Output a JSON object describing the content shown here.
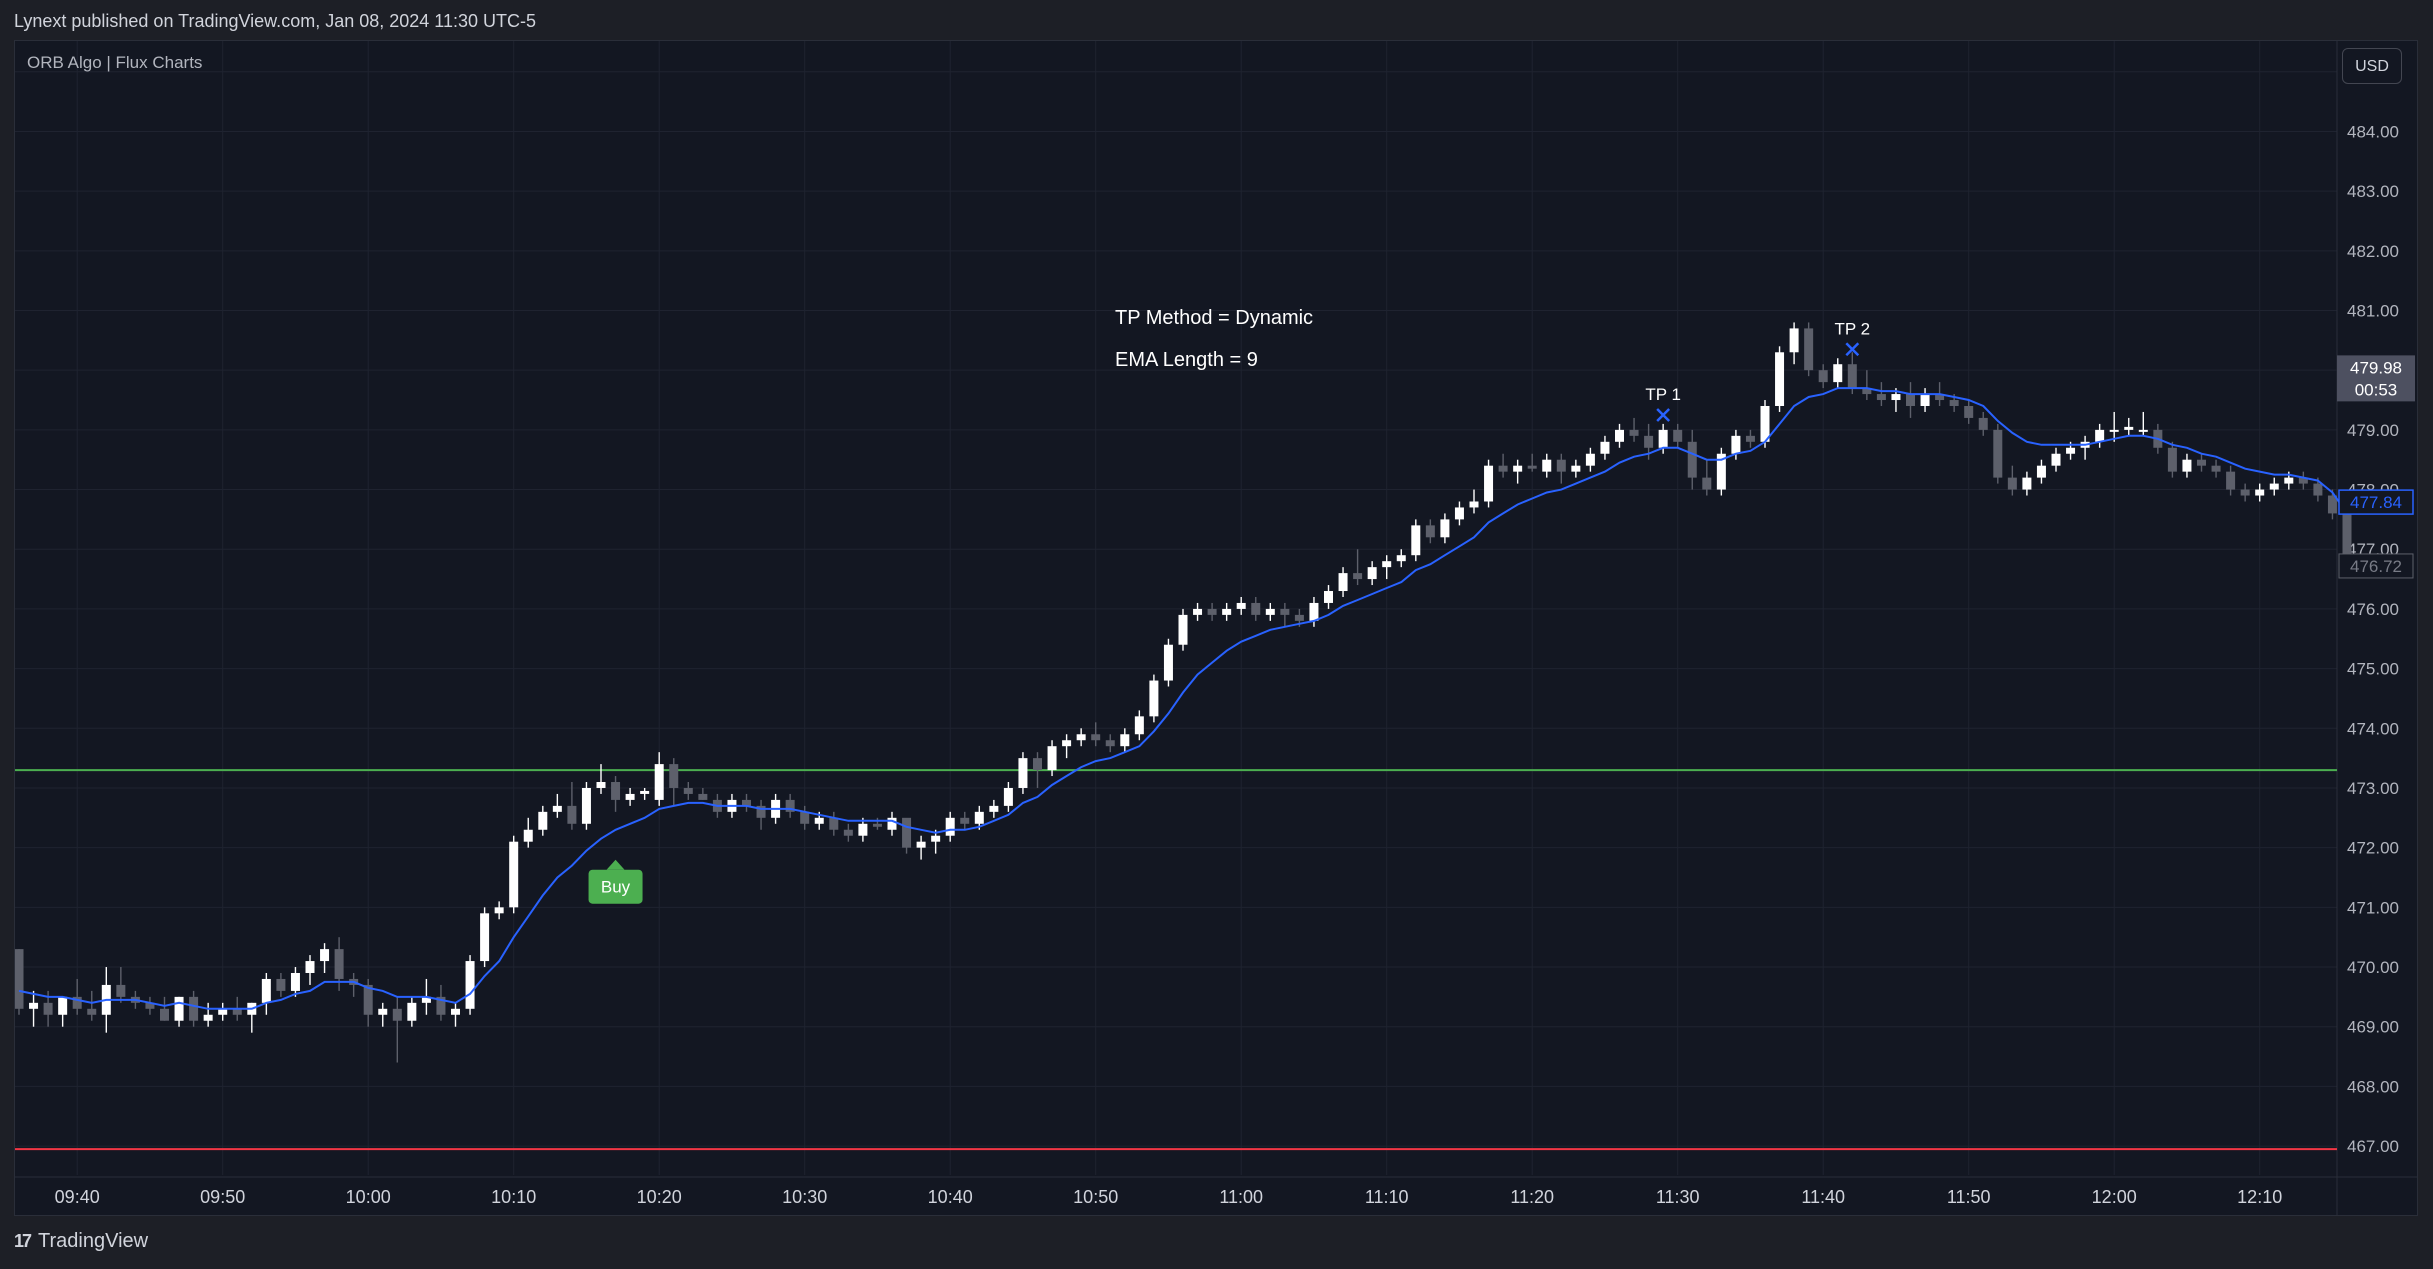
{
  "header": {
    "published_text": "Lynext published on TradingView.com, Jan 08, 2024 11:30 UTC-5"
  },
  "indicator": {
    "name": "ORB Algo | Flux Charts"
  },
  "currency": "USD",
  "footer": {
    "logo_mark": "17",
    "logo_text": "TradingView"
  },
  "colors": {
    "background": "#131722",
    "grid": "#1f2330",
    "bull_candle": "#ffffff",
    "bear_candle": "#5d606b",
    "ema": "#2962ff",
    "orb_high_line": "#4caf50",
    "orb_low_line": "#f23645",
    "buy_label": "#4caf50",
    "tp_marker": "#2962ff"
  },
  "chart_data": {
    "type": "candlestick",
    "title": "",
    "ylim": [
      466.75,
      485.75
    ],
    "y_ticks": [
      467,
      468,
      469,
      470,
      471,
      472,
      473,
      474,
      475,
      476,
      477,
      478,
      479,
      480,
      481,
      482,
      483,
      484,
      485
    ],
    "y_tick_labels": [
      "467.00",
      "468.00",
      "469.00",
      "470.00",
      "471.00",
      "472.00",
      "473.00",
      "474.00",
      "475.00",
      "476.00",
      "477.00",
      "478.00",
      "479.00",
      "480.00",
      "481.00",
      "482.00",
      "483.00",
      "484.00",
      "485.00"
    ],
    "x_tick_labels": [
      "09:40",
      "09:50",
      "10:00",
      "10:10",
      "10:20",
      "10:30",
      "10:40",
      "10:50",
      "11:00",
      "11:10",
      "11:20",
      "11:30",
      "11:40",
      "11:50",
      "12:00",
      "12:10"
    ],
    "x_tick_bar_index": [
      4,
      14,
      24,
      34,
      44,
      54,
      64,
      74,
      84,
      94,
      104,
      114,
      124,
      134,
      144,
      154
    ],
    "annotations": [
      {
        "text": "TP Method = Dynamic"
      },
      {
        "text": "EMA Length = 9"
      }
    ],
    "signals": [
      {
        "type": "buy",
        "label": "Buy",
        "bar_index": 41,
        "price": 472.1
      },
      {
        "type": "tp",
        "label": "TP 1",
        "bar_index": 113,
        "price": 479.25
      },
      {
        "type": "tp",
        "label": "TP 2",
        "bar_index": 126,
        "price": 480.35
      }
    ],
    "horizontal_lines": [
      {
        "name": "orb_high",
        "price": 473.3
      },
      {
        "name": "orb_low",
        "price": 466.95
      }
    ],
    "price_labels": [
      {
        "name": "last_price",
        "value": "479.98",
        "sub": "00:53"
      },
      {
        "name": "ema_value",
        "value": "477.84"
      },
      {
        "name": "prev_close",
        "value": "476.72"
      }
    ],
    "ohlc": [
      [
        470.3,
        470.3,
        469.2,
        469.3
      ],
      [
        469.3,
        469.6,
        469.0,
        469.4
      ],
      [
        469.4,
        469.6,
        469.0,
        469.2
      ],
      [
        469.2,
        469.5,
        469.0,
        469.5
      ],
      [
        469.5,
        469.8,
        469.2,
        469.3
      ],
      [
        469.3,
        469.6,
        469.1,
        469.2
      ],
      [
        469.2,
        470.0,
        468.9,
        469.7
      ],
      [
        469.7,
        470.0,
        469.4,
        469.5
      ],
      [
        469.5,
        469.6,
        469.3,
        469.4
      ],
      [
        469.4,
        469.5,
        469.2,
        469.3
      ],
      [
        469.3,
        469.5,
        469.1,
        469.1
      ],
      [
        469.1,
        469.5,
        469.0,
        469.5
      ],
      [
        469.5,
        469.6,
        469.0,
        469.1
      ],
      [
        469.1,
        469.4,
        469.0,
        469.2
      ],
      [
        469.2,
        469.4,
        469.1,
        469.3
      ],
      [
        469.3,
        469.5,
        469.1,
        469.2
      ],
      [
        469.2,
        469.4,
        468.9,
        469.4
      ],
      [
        469.4,
        469.9,
        469.2,
        469.8
      ],
      [
        469.8,
        469.9,
        469.5,
        469.6
      ],
      [
        469.6,
        470.0,
        469.5,
        469.9
      ],
      [
        469.9,
        470.2,
        469.7,
        470.1
      ],
      [
        470.1,
        470.4,
        469.9,
        470.3
      ],
      [
        470.3,
        470.5,
        469.6,
        469.8
      ],
      [
        469.8,
        469.9,
        469.5,
        469.7
      ],
      [
        469.7,
        469.8,
        469.0,
        469.2
      ],
      [
        469.2,
        469.4,
        469.0,
        469.3
      ],
      [
        469.3,
        469.5,
        468.4,
        469.1
      ],
      [
        469.1,
        469.5,
        469.0,
        469.4
      ],
      [
        469.4,
        469.8,
        469.2,
        469.5
      ],
      [
        469.5,
        469.7,
        469.1,
        469.2
      ],
      [
        469.2,
        469.4,
        469.0,
        469.3
      ],
      [
        469.3,
        470.2,
        469.2,
        470.1
      ],
      [
        470.1,
        471.0,
        470.0,
        470.9
      ],
      [
        470.9,
        471.1,
        470.8,
        471.0
      ],
      [
        471.0,
        472.2,
        470.9,
        472.1
      ],
      [
        472.1,
        472.5,
        472.0,
        472.3
      ],
      [
        472.3,
        472.7,
        472.2,
        472.6
      ],
      [
        472.6,
        472.9,
        472.5,
        472.7
      ],
      [
        472.7,
        473.1,
        472.3,
        472.4
      ],
      [
        472.4,
        473.1,
        472.3,
        473.0
      ],
      [
        473.0,
        473.4,
        472.9,
        473.1
      ],
      [
        473.1,
        473.2,
        472.6,
        472.8
      ],
      [
        472.8,
        473.0,
        472.7,
        472.9
      ],
      [
        472.9,
        473.0,
        472.8,
        472.95
      ],
      [
        472.8,
        473.6,
        472.7,
        473.4
      ],
      [
        473.4,
        473.5,
        472.7,
        473.0
      ],
      [
        473.0,
        473.1,
        472.8,
        472.9
      ],
      [
        472.9,
        473.0,
        472.8,
        472.8
      ],
      [
        472.8,
        472.9,
        472.5,
        472.6
      ],
      [
        472.6,
        472.9,
        472.5,
        472.8
      ],
      [
        472.8,
        472.9,
        472.6,
        472.7
      ],
      [
        472.7,
        472.8,
        472.3,
        472.5
      ],
      [
        472.5,
        472.9,
        472.4,
        472.8
      ],
      [
        472.8,
        472.9,
        472.5,
        472.6
      ],
      [
        472.6,
        472.7,
        472.3,
        472.4
      ],
      [
        472.4,
        472.6,
        472.3,
        472.5
      ],
      [
        472.5,
        472.6,
        472.2,
        472.3
      ],
      [
        472.3,
        472.4,
        472.1,
        472.2
      ],
      [
        472.2,
        472.5,
        472.1,
        472.4
      ],
      [
        472.4,
        472.5,
        472.3,
        472.35
      ],
      [
        472.3,
        472.6,
        472.2,
        472.5
      ],
      [
        472.5,
        472.4,
        471.9,
        472.0
      ],
      [
        472.0,
        472.2,
        471.8,
        472.1
      ],
      [
        472.1,
        472.3,
        471.9,
        472.2
      ],
      [
        472.2,
        472.6,
        472.1,
        472.5
      ],
      [
        472.5,
        472.6,
        472.3,
        472.4
      ],
      [
        472.4,
        472.7,
        472.3,
        472.6
      ],
      [
        472.6,
        472.8,
        472.5,
        472.7
      ],
      [
        472.7,
        473.1,
        472.6,
        473.0
      ],
      [
        473.0,
        473.6,
        472.9,
        473.5
      ],
      [
        473.5,
        473.6,
        473.0,
        473.3
      ],
      [
        473.3,
        473.8,
        473.2,
        473.7
      ],
      [
        473.7,
        473.9,
        473.5,
        473.8
      ],
      [
        473.8,
        474.0,
        473.7,
        473.9
      ],
      [
        473.9,
        474.1,
        473.7,
        473.8
      ],
      [
        473.8,
        473.9,
        473.6,
        473.7
      ],
      [
        473.7,
        474.0,
        473.6,
        473.9
      ],
      [
        473.9,
        474.3,
        473.8,
        474.2
      ],
      [
        474.2,
        474.9,
        474.1,
        474.8
      ],
      [
        474.8,
        475.5,
        474.7,
        475.4
      ],
      [
        475.4,
        476.0,
        475.3,
        475.9
      ],
      [
        475.9,
        476.1,
        475.8,
        476.0
      ],
      [
        476.0,
        476.1,
        475.8,
        475.9
      ],
      [
        475.9,
        476.1,
        475.8,
        476.0
      ],
      [
        476.0,
        476.2,
        475.9,
        476.1
      ],
      [
        476.1,
        476.2,
        475.8,
        475.9
      ],
      [
        475.9,
        476.1,
        475.8,
        476.0
      ],
      [
        476.0,
        476.1,
        475.7,
        475.9
      ],
      [
        475.9,
        476.0,
        475.7,
        475.8
      ],
      [
        475.8,
        476.2,
        475.7,
        476.1
      ],
      [
        476.1,
        476.4,
        476.0,
        476.3
      ],
      [
        476.3,
        476.7,
        476.2,
        476.6
      ],
      [
        476.6,
        477.0,
        476.4,
        476.5
      ],
      [
        476.5,
        476.8,
        476.4,
        476.7
      ],
      [
        476.7,
        476.9,
        476.5,
        476.8
      ],
      [
        476.8,
        477.0,
        476.7,
        476.9
      ],
      [
        476.9,
        477.5,
        476.8,
        477.4
      ],
      [
        477.4,
        477.5,
        477.1,
        477.2
      ],
      [
        477.2,
        477.6,
        477.1,
        477.5
      ],
      [
        477.5,
        477.8,
        477.4,
        477.7
      ],
      [
        477.7,
        478.0,
        477.6,
        477.8
      ],
      [
        477.8,
        478.5,
        477.7,
        478.4
      ],
      [
        478.4,
        478.6,
        478.2,
        478.3
      ],
      [
        478.3,
        478.5,
        478.1,
        478.4
      ],
      [
        478.4,
        478.6,
        478.3,
        478.35
      ],
      [
        478.3,
        478.6,
        478.2,
        478.5
      ],
      [
        478.5,
        478.6,
        478.1,
        478.3
      ],
      [
        478.3,
        478.5,
        478.2,
        478.4
      ],
      [
        478.4,
        478.7,
        478.3,
        478.6
      ],
      [
        478.6,
        478.9,
        478.5,
        478.8
      ],
      [
        478.8,
        479.1,
        478.7,
        479.0
      ],
      [
        479.0,
        479.2,
        478.8,
        478.9
      ],
      [
        478.9,
        479.1,
        478.5,
        478.7
      ],
      [
        478.7,
        479.1,
        478.6,
        479.0
      ],
      [
        479.0,
        479.1,
        478.7,
        478.8
      ],
      [
        478.8,
        479.0,
        478.0,
        478.2
      ],
      [
        478.2,
        478.5,
        477.9,
        478.0
      ],
      [
        478.0,
        478.7,
        477.9,
        478.6
      ],
      [
        478.6,
        479.0,
        478.5,
        478.9
      ],
      [
        478.9,
        479.0,
        478.7,
        478.8
      ],
      [
        478.8,
        479.5,
        478.7,
        479.4
      ],
      [
        479.4,
        480.4,
        479.3,
        480.3
      ],
      [
        480.3,
        480.8,
        480.1,
        480.7
      ],
      [
        480.7,
        480.8,
        479.9,
        480.0
      ],
      [
        480.0,
        480.1,
        479.7,
        479.8
      ],
      [
        479.8,
        480.2,
        479.7,
        480.1
      ],
      [
        480.1,
        480.3,
        479.6,
        479.7
      ],
      [
        479.7,
        480.0,
        479.5,
        479.6
      ],
      [
        479.6,
        479.8,
        479.4,
        479.5
      ],
      [
        479.5,
        479.7,
        479.3,
        479.6
      ],
      [
        479.6,
        479.8,
        479.2,
        479.4
      ],
      [
        479.4,
        479.7,
        479.3,
        479.6
      ],
      [
        479.6,
        479.8,
        479.4,
        479.5
      ],
      [
        479.5,
        479.6,
        479.3,
        479.4
      ],
      [
        479.4,
        479.5,
        479.1,
        479.2
      ],
      [
        479.2,
        479.3,
        478.9,
        479.0
      ],
      [
        479.0,
        479.1,
        478.1,
        478.2
      ],
      [
        478.2,
        478.4,
        477.9,
        478.0
      ],
      [
        478.0,
        478.3,
        477.9,
        478.2
      ],
      [
        478.2,
        478.5,
        478.1,
        478.4
      ],
      [
        478.4,
        478.7,
        478.3,
        478.6
      ],
      [
        478.6,
        478.8,
        478.5,
        478.7
      ],
      [
        478.7,
        478.9,
        478.5,
        478.8
      ],
      [
        478.8,
        479.1,
        478.7,
        479.0
      ],
      [
        479.0,
        479.3,
        478.8,
        479.0
      ],
      [
        479.0,
        479.2,
        478.9,
        479.05
      ],
      [
        479.0,
        479.3,
        478.9,
        479.0
      ],
      [
        479.0,
        479.1,
        478.6,
        478.7
      ],
      [
        478.7,
        478.8,
        478.2,
        478.3
      ],
      [
        478.3,
        478.6,
        478.2,
        478.5
      ],
      [
        478.5,
        478.6,
        478.3,
        478.4
      ],
      [
        478.4,
        478.5,
        478.2,
        478.3
      ],
      [
        478.3,
        478.4,
        477.9,
        478.0
      ],
      [
        478.0,
        478.1,
        477.8,
        477.9
      ],
      [
        477.9,
        478.1,
        477.8,
        478.0
      ],
      [
        478.0,
        478.2,
        477.9,
        478.1
      ],
      [
        478.1,
        478.3,
        478.0,
        478.2
      ],
      [
        478.2,
        478.3,
        478.0,
        478.1
      ],
      [
        478.1,
        478.2,
        477.8,
        477.9
      ],
      [
        477.9,
        478.0,
        477.5,
        477.6
      ],
      [
        477.6,
        477.7,
        476.8,
        476.9
      ]
    ],
    "ema": [
      469.6,
      469.55,
      469.5,
      469.5,
      469.45,
      469.4,
      469.45,
      469.45,
      469.45,
      469.4,
      469.35,
      469.4,
      469.35,
      469.3,
      469.3,
      469.3,
      469.3,
      469.4,
      469.45,
      469.55,
      469.6,
      469.75,
      469.75,
      469.75,
      469.65,
      469.6,
      469.5,
      469.5,
      469.5,
      469.45,
      469.4,
      469.55,
      469.85,
      470.1,
      470.5,
      470.85,
      471.2,
      471.5,
      471.7,
      471.95,
      472.15,
      472.3,
      472.4,
      472.5,
      472.65,
      472.7,
      472.75,
      472.75,
      472.7,
      472.7,
      472.7,
      472.65,
      472.65,
      472.65,
      472.6,
      472.55,
      472.5,
      472.45,
      472.45,
      472.45,
      472.45,
      472.35,
      472.3,
      472.25,
      472.3,
      472.3,
      472.35,
      472.45,
      472.55,
      472.75,
      472.85,
      473.05,
      473.2,
      473.35,
      473.45,
      473.5,
      473.6,
      473.7,
      473.95,
      474.25,
      474.6,
      474.9,
      475.1,
      475.3,
      475.45,
      475.55,
      475.65,
      475.7,
      475.75,
      475.8,
      475.9,
      476.05,
      476.15,
      476.25,
      476.35,
      476.45,
      476.65,
      476.75,
      476.9,
      477.05,
      477.2,
      477.45,
      477.6,
      477.75,
      477.85,
      477.95,
      478.0,
      478.1,
      478.2,
      478.3,
      478.45,
      478.55,
      478.6,
      478.7,
      478.7,
      478.6,
      478.5,
      478.5,
      478.6,
      478.65,
      478.8,
      479.1,
      479.4,
      479.55,
      479.6,
      479.7,
      479.7,
      479.7,
      479.65,
      479.65,
      479.6,
      479.6,
      479.6,
      479.55,
      479.5,
      479.4,
      479.15,
      478.95,
      478.8,
      478.75,
      478.75,
      478.75,
      478.75,
      478.8,
      478.85,
      478.9,
      478.9,
      478.85,
      478.75,
      478.7,
      478.6,
      478.55,
      478.45,
      478.35,
      478.3,
      478.25,
      478.25,
      478.2,
      478.15,
      477.95,
      477.6
    ]
  }
}
